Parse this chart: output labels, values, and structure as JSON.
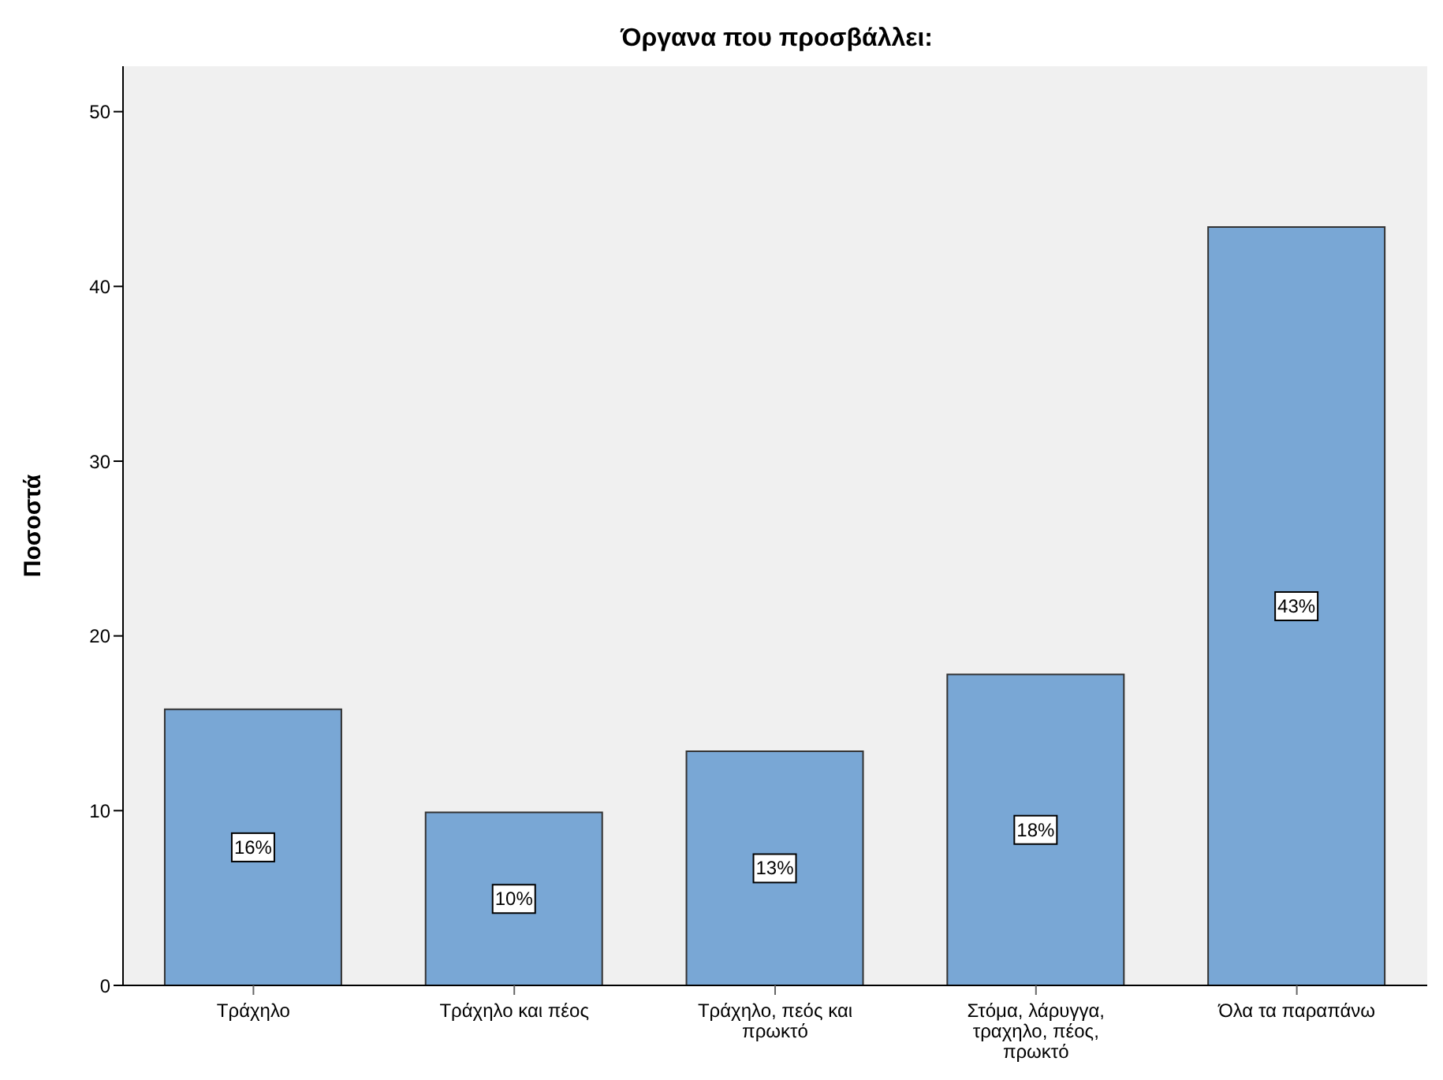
{
  "chart_data": {
    "type": "bar",
    "title": "Όργανα που προσβάλλει:",
    "ylabel": "Ποσοστά",
    "categories": [
      "Τράχηλο",
      "Τράχηλο και πέος",
      "Τράχηλο, πεός και πρωκτό",
      "Στόμα, λάρυγγα, τραχηλο, πέος, πρωκτό",
      "Όλα τα παραπάνω"
    ],
    "values": [
      15.8,
      9.9,
      13.4,
      17.8,
      43.4
    ],
    "value_labels": [
      "16%",
      "10%",
      "13%",
      "18%",
      "43%"
    ],
    "color": "#79a7d5",
    "ylim": [
      0,
      52.6
    ],
    "yticks": [
      0,
      10,
      20,
      30,
      40,
      50
    ],
    "grid": false
  }
}
